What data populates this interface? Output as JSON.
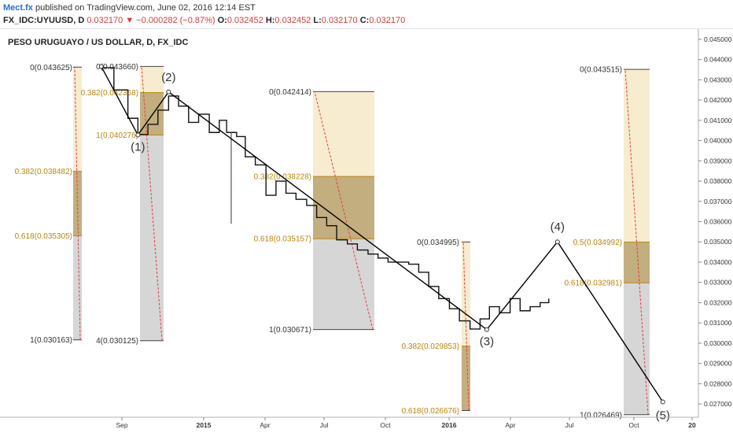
{
  "header": {
    "author": "Mect.fx",
    "published": "published on TradingView.com, June 02, 2016 12:14 EST",
    "symbol": "FX_IDC:UYUUSD, D",
    "last": "0.032170",
    "change": "▼ −0.000282 (−0.87%)",
    "open_label": "O:",
    "open": "0.032452",
    "high_label": "H:",
    "high": "0.032452",
    "low_label": "L:",
    "low": "0.032170",
    "close_label": "C:",
    "close": "0.032170"
  },
  "colors": {
    "fib_light": "#f6e9c8",
    "fib_mid": "#b9a06a",
    "fib_gray": "#cfcfcf",
    "fib_label": "#b8860b",
    "wave_line": "#000000",
    "fib_trend": "#e23b3b"
  },
  "chart_data": {
    "type": "line",
    "title": "PESO URUGUAYO / US DOLLAR, D, FX_IDC",
    "xlabel": "",
    "ylabel": "",
    "x_ticks": [
      "Sep",
      "2015",
      "Apr",
      "Jul",
      "Oct",
      "2016",
      "Apr",
      "Jul",
      "Oct",
      "20"
    ],
    "ylim": [
      0.0265,
      0.0455
    ],
    "y_ticks": [
      "0.045000",
      "0.044000",
      "0.043000",
      "0.042000",
      "0.041000",
      "0.040000",
      "0.039000",
      "0.038000",
      "0.037000",
      "0.036000",
      "0.035000",
      "0.034000",
      "0.033000",
      "0.032000",
      "0.031000",
      "0.030000",
      "0.029000",
      "0.028000",
      "0.027000"
    ],
    "grid": false,
    "series": [
      {
        "x": [
          "2014-08-01",
          "2014-08-20",
          "2014-09-10",
          "2014-09-25",
          "2014-10-10",
          "2014-10-25",
          "2014-11-10",
          "2014-11-25",
          "2014-12-10",
          "2014-12-25",
          "2015-01-10",
          "2015-01-25",
          "2015-02-05",
          "2015-02-20",
          "2015-03-05",
          "2015-03-20",
          "2015-04-05",
          "2015-04-20",
          "2015-05-05",
          "2015-05-20",
          "2015-06-05",
          "2015-06-20",
          "2015-07-05",
          "2015-07-20",
          "2015-08-05",
          "2015-08-20",
          "2015-09-05",
          "2015-09-20",
          "2015-10-05",
          "2015-10-20",
          "2015-11-05",
          "2015-11-20",
          "2015-12-05",
          "2015-12-20",
          "2016-01-05",
          "2016-01-20",
          "2016-02-05",
          "2016-02-20",
          "2016-03-05",
          "2016-03-20",
          "2016-04-05",
          "2016-04-20",
          "2016-05-05",
          "2016-05-20",
          "2016-06-02"
        ],
        "y": [
          0.0436,
          0.0425,
          0.0411,
          0.0403,
          0.0408,
          0.0415,
          0.0422,
          0.0417,
          0.0409,
          0.0413,
          0.0404,
          0.041,
          0.0404,
          0.0402,
          0.0392,
          0.0388,
          0.0373,
          0.038,
          0.0374,
          0.0371,
          0.0368,
          0.0362,
          0.0358,
          0.0351,
          0.0349,
          0.0346,
          0.0344,
          0.0342,
          0.034,
          0.034,
          0.0339,
          0.0335,
          0.0328,
          0.0322,
          0.0317,
          0.0311,
          0.0307,
          0.0312,
          0.0318,
          0.0315,
          0.0322,
          0.0316,
          0.0318,
          0.032,
          0.0322
        ]
      }
    ],
    "wave_points": [
      {
        "label": "",
        "x": "2014-08-01",
        "y": 0.04366
      },
      {
        "label": "(1)",
        "x": "2014-09-25",
        "y": 0.040276
      },
      {
        "label": "(2)",
        "x": "2014-11-10",
        "y": 0.0424
      },
      {
        "label": "(3)",
        "x": "2016-03-01",
        "y": 0.030671
      },
      {
        "label": "(4)",
        "x": "2016-06-15",
        "y": 0.035
      },
      {
        "label": "(5)",
        "x": "2016-11-20",
        "y": 0.0271
      }
    ],
    "annotations": [
      "(1)",
      "(2)",
      "(3)",
      "(4)",
      "(5)",
      "0(0.043625)",
      "0.382(0.038482)",
      "0.618(0.035305)",
      "1(0.030163)",
      "0(0.043660)",
      "0.382(0.042368)",
      "1(0.040276)",
      "4(0.030125)",
      "0(0.042414)",
      "0.382(0.038228)",
      "0.618(0.035157)",
      "1(0.030671)",
      "0(0.034995)",
      "0.382(0.029853)",
      "0.618(0.026676)",
      "0(0.043515)",
      "0.5(0.034992)",
      "0.618(0.032981)",
      "1(0.026469)"
    ],
    "fib_boxes": [
      {
        "levels": [
          {
            "label": "0(0.043625)",
            "value": 0.043625
          },
          {
            "label": "0.382(0.038482)",
            "value": 0.038482
          },
          {
            "label": "0.618(0.035305)",
            "value": 0.035305
          },
          {
            "label": "1(0.030163)",
            "value": 0.030163
          }
        ]
      },
      {
        "levels": [
          {
            "label": "0(0.043660)",
            "value": 0.04366
          },
          {
            "label": "0.382(0.042368)",
            "value": 0.042368
          },
          {
            "label": "1(0.040276)",
            "value": 0.040276
          },
          {
            "label": "4(0.030125)",
            "value": 0.030125
          }
        ]
      },
      {
        "levels": [
          {
            "label": "0(0.042414)",
            "value": 0.042414
          },
          {
            "label": "0.382(0.038228)",
            "value": 0.038228
          },
          {
            "label": "0.618(0.035157)",
            "value": 0.035157
          },
          {
            "label": "1(0.030671)",
            "value": 0.030671
          }
        ]
      },
      {
        "levels": [
          {
            "label": "0(0.034995)",
            "value": 0.034995
          },
          {
            "label": "0.382(0.029853)",
            "value": 0.029853
          },
          {
            "label": "0.618(0.026676)",
            "value": 0.026676
          }
        ]
      },
      {
        "levels": [
          {
            "label": "0(0.043515)",
            "value": 0.043515
          },
          {
            "label": "0.5(0.034992)",
            "value": 0.034992
          },
          {
            "label": "0.618(0.032981)",
            "value": 0.032981
          },
          {
            "label": "1(0.026469)",
            "value": 0.026469
          }
        ]
      }
    ]
  }
}
